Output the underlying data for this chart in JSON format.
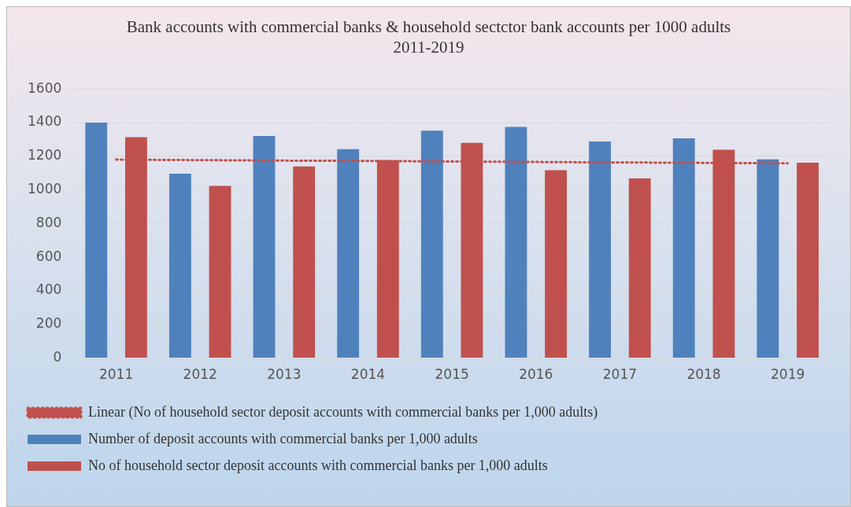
{
  "chart_data": {
    "type": "bar",
    "title": "Bank accounts with commercial banks & household sectctor bank accounts per 1000 adults\n2011-2019",
    "categories": [
      "2011",
      "2012",
      "2013",
      "2014",
      "2015",
      "2016",
      "2017",
      "2018",
      "2019"
    ],
    "series": [
      {
        "name": "Number of deposit accounts with commercial banks per 1,000 adults",
        "color": "#4f81bd",
        "values": [
          1400,
          1096,
          1320,
          1242,
          1352,
          1374,
          1288,
          1306,
          1182
        ]
      },
      {
        "name": "No of household sector deposit accounts with commercial banks per 1,000 adults",
        "color": "#c0504d",
        "values": [
          1314,
          1024,
          1139,
          1177,
          1280,
          1117,
          1068,
          1239,
          1162
        ]
      },
      {
        "name": "Linear (No of household sector deposit accounts with commercial banks per 1,000 adults)",
        "type": "line",
        "color": "#c0504d",
        "line_style": "dotted",
        "marker": "none",
        "values": [
          1180,
          1177,
          1174,
          1172,
          1169,
          1166,
          1163,
          1161,
          1158
        ]
      }
    ],
    "ylim": [
      0,
      1600
    ],
    "yticks": [
      0,
      200,
      400,
      600,
      800,
      1000,
      1200,
      1400,
      1600
    ],
    "grid": "y",
    "legend": "bottom"
  }
}
